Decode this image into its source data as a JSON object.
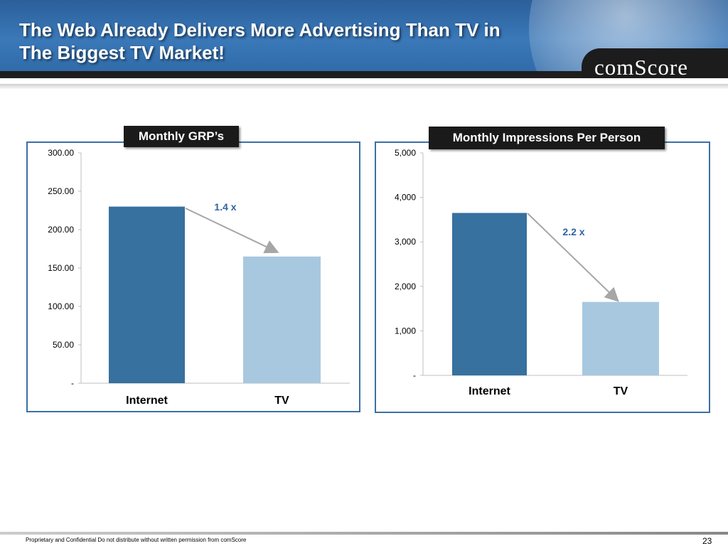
{
  "slide": {
    "title_line1": "The Web Already Delivers More Advertising Than TV in",
    "title_line2": "The Biggest TV Market!",
    "logo": "comScore",
    "footer": "Proprietary and Confidential Do not distribute without written permission from comScore",
    "page_number": "23"
  },
  "colors": {
    "internet_bar": "#36719f",
    "tv_bar": "#a8c8e0",
    "panel_border": "#3d6fa6",
    "arrow": "#a6a6a6"
  },
  "chart_data": [
    {
      "type": "bar",
      "title": "Monthly GRP’s",
      "categories": [
        "Internet",
        "TV"
      ],
      "values": [
        230,
        165
      ],
      "ylim": [
        0,
        300
      ],
      "yticks": [
        "300.00",
        "250.00",
        "200.00",
        "150.00",
        "100.00",
        "50.00",
        "-"
      ],
      "annotation": "1.4 x",
      "grid": false
    },
    {
      "type": "bar",
      "title": "Monthly Impressions Per Person",
      "categories": [
        "Internet",
        "TV"
      ],
      "values": [
        3650,
        1650
      ],
      "ylim": [
        0,
        5000
      ],
      "yticks": [
        "5,000",
        "4,000",
        "3,000",
        "2,000",
        "1,000",
        "-"
      ],
      "annotation": "2.2 x",
      "grid": false
    }
  ]
}
